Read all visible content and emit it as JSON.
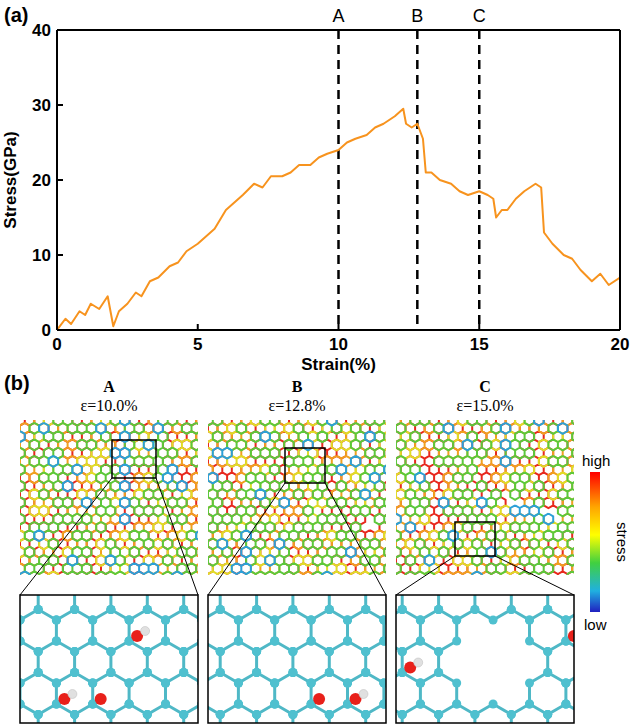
{
  "chart_data": {
    "type": "line",
    "panel_label": "(a)",
    "x_label": "Strain(%)",
    "y_label": "Stress(GPa)",
    "x": [
      0,
      0.3,
      0.5,
      0.8,
      1.0,
      1.2,
      1.5,
      1.8,
      2.0,
      2.2,
      2.5,
      2.8,
      3.0,
      3.3,
      3.6,
      4.0,
      4.3,
      4.6,
      5.0,
      5.3,
      5.6,
      6.0,
      6.3,
      6.6,
      7.0,
      7.3,
      7.6,
      8.0,
      8.3,
      8.6,
      9.0,
      9.3,
      9.6,
      10.0,
      10.3,
      10.6,
      11.0,
      11.3,
      11.6,
      12.0,
      12.3,
      12.4,
      12.6,
      12.8,
      13.0,
      13.1,
      13.3,
      13.6,
      14.0,
      14.3,
      14.6,
      15.0,
      15.3,
      15.5,
      15.6,
      15.8,
      16.0,
      16.3,
      16.6,
      17.0,
      17.2,
      17.3,
      17.6,
      18.0,
      18.3,
      18.6,
      19.0,
      19.3,
      19.6,
      20.0
    ],
    "series": [
      {
        "name": "stress",
        "color": "#f7931e",
        "values": [
          0,
          1.5,
          0.8,
          2.5,
          2,
          3.5,
          2.8,
          4.5,
          0.5,
          2.5,
          3.5,
          5,
          4.5,
          6.5,
          7,
          8.5,
          9,
          10.5,
          11.5,
          12.5,
          13.5,
          16,
          17,
          18,
          19.5,
          19,
          20.5,
          20.5,
          21,
          22,
          22,
          23,
          23.5,
          24,
          25,
          25.5,
          26,
          27,
          27.5,
          28.5,
          29.5,
          27.5,
          27,
          27.5,
          25.5,
          21,
          21,
          20,
          19.5,
          18.5,
          18,
          18.5,
          18,
          17.5,
          15,
          16,
          16,
          17.5,
          18.5,
          19.5,
          19,
          13,
          11.5,
          10,
          9.5,
          8,
          6.5,
          7.5,
          6,
          7
        ]
      }
    ],
    "xlim": [
      0,
      20
    ],
    "ylim": [
      0,
      40
    ],
    "xticks": [
      0,
      5,
      10,
      15,
      20
    ],
    "yticks": [
      0,
      10,
      20,
      30,
      40
    ],
    "annotations": [
      {
        "label": "A",
        "x": 10
      },
      {
        "label": "B",
        "x": 12.8
      },
      {
        "label": "C",
        "x": 15
      }
    ]
  },
  "panel_b": {
    "label": "(b)",
    "panels": [
      {
        "label": "A",
        "caption": "ε=10.0%"
      },
      {
        "label": "B",
        "caption": "ε=12.8%"
      },
      {
        "label": "C",
        "caption": "ε=15.0%"
      }
    ],
    "colorbar": {
      "high": "high",
      "low": "low",
      "title": "stress"
    }
  }
}
